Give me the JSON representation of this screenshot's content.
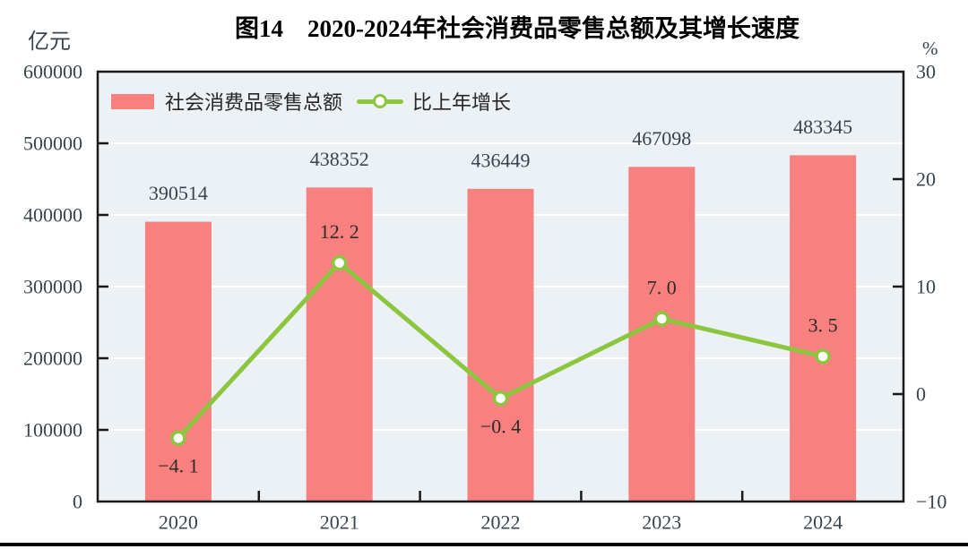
{
  "chart_data": {
    "type": "bar+line combo",
    "title": "图14　2020-2024年社会消费品零售总额及其增长速度",
    "categories": [
      "2020",
      "2021",
      "2022",
      "2023",
      "2024"
    ],
    "series": [
      {
        "name": "社会消费品零售总额",
        "type": "bar",
        "axis": "left",
        "color": "#f8807e",
        "values": [
          390514,
          438352,
          436449,
          467098,
          483345
        ],
        "value_labels": [
          "390514",
          "438352",
          "436449",
          "467098",
          "483345"
        ]
      },
      {
        "name": "比上年增长",
        "type": "line",
        "axis": "right",
        "color": "#8cc63e",
        "marker": "circle-white-fill",
        "values": [
          -4.1,
          12.2,
          -0.4,
          7.0,
          3.5
        ],
        "value_labels": [
          "−4. 1",
          "12. 2",
          "−0. 4",
          "7. 0",
          "3. 5"
        ]
      }
    ],
    "left_axis": {
      "unit": "亿元",
      "min": 0,
      "max": 600000,
      "tick_values": [
        0,
        100000,
        200000,
        300000,
        400000,
        500000,
        600000
      ],
      "tick_labels": [
        "0",
        "100000",
        "200000",
        "300000",
        "400000",
        "500000",
        "600000"
      ]
    },
    "right_axis": {
      "unit": "%",
      "min": -10,
      "max": 30,
      "tick_values": [
        -10,
        0,
        10,
        20,
        30
      ],
      "tick_labels": [
        "−10",
        "0",
        "10",
        "20",
        "30"
      ]
    },
    "grid": true,
    "legend_position": "top-left-inside",
    "plot_bg_color": "#ebf1f5",
    "gridline_color": "#ffffff",
    "border_color": "#1a1a1a",
    "label_color": "#39424e"
  }
}
